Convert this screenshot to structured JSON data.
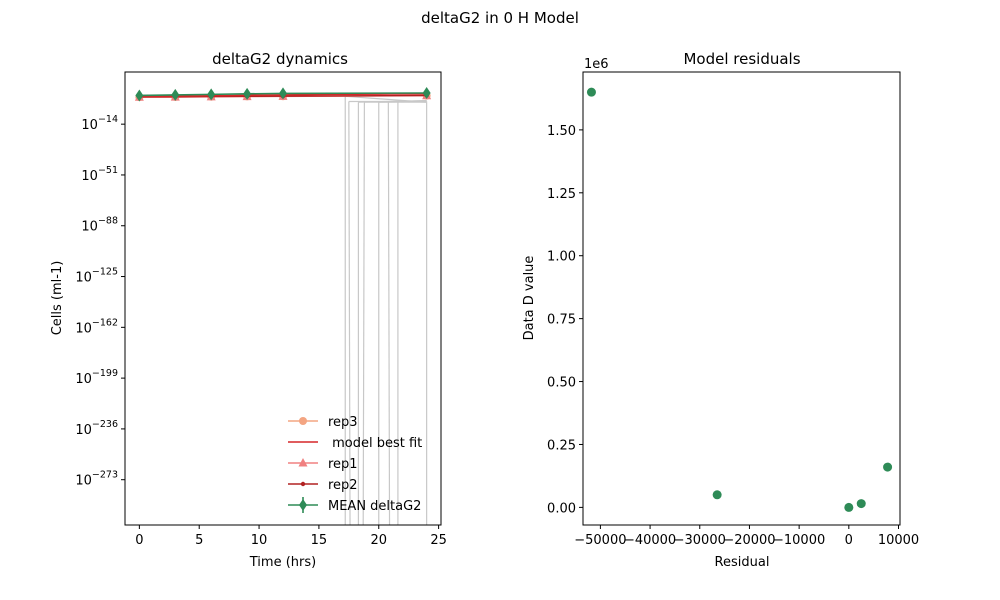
{
  "figure_title": "deltaG2 in 0 H Model",
  "colors": {
    "rep3": "#f4a582",
    "model": "#d62728",
    "rep1": "#f08080",
    "rep2": "#b22222",
    "mean": "#2e8b57",
    "ensemble": "#c8c8c8"
  },
  "chart_data": [
    {
      "type": "line",
      "title": "deltaG2 dynamics",
      "xlabel": "Time (hrs)",
      "ylabel": "Cells (ml-1)",
      "yscale": "log",
      "xlim": [
        -1.2,
        25.2
      ],
      "ylim_log10": [
        -306,
        24
      ],
      "x_ticks": [
        0,
        5,
        10,
        15,
        20,
        25
      ],
      "x_tick_labels": [
        "0",
        "5",
        "10",
        "15",
        "20",
        "25"
      ],
      "y_ticks_log10": [
        -14,
        -51,
        -88,
        -125,
        -162,
        -199,
        -236,
        -273
      ],
      "y_tick_labels": [
        "10",
        "10",
        "10",
        "10",
        "10",
        "10",
        "10",
        "10"
      ],
      "y_tick_exponents": [
        "−14",
        "−51",
        "−88",
        "−125",
        "−162",
        "−199",
        "−236",
        "−273"
      ],
      "legend": {
        "position": "lower right",
        "entries": [
          {
            "key": "rep3",
            "label": "rep3",
            "marker": "circle"
          },
          {
            "key": "model",
            "label": " model best fit",
            "marker": "none"
          },
          {
            "key": "rep1",
            "label": "rep1",
            "marker": "triangle"
          },
          {
            "key": "rep2",
            "label": "rep2",
            "marker": "dot"
          },
          {
            "key": "mean",
            "label": "MEAN deltaG2",
            "marker": "diamond"
          }
        ]
      },
      "series": [
        {
          "key": "rep3",
          "marker": "circle",
          "x": [
            0,
            3,
            6,
            9,
            12,
            24
          ],
          "y_log10": [
            5.7,
            5.8,
            6.0,
            6.2,
            6.3,
            6.8
          ]
        },
        {
          "key": "rep1",
          "marker": "triangle",
          "x": [
            0,
            3,
            6,
            9,
            12,
            24
          ],
          "y_log10": [
            5.6,
            5.7,
            5.9,
            6.1,
            6.2,
            6.7
          ]
        },
        {
          "key": "rep2",
          "marker": "dot",
          "x": [
            0,
            3,
            6,
            9,
            12,
            24
          ],
          "y_log10": [
            5.8,
            5.9,
            6.1,
            6.3,
            6.4,
            6.9
          ]
        },
        {
          "key": "model",
          "marker": "none",
          "x": [
            0,
            3,
            6,
            9,
            12,
            15,
            18,
            21,
            24
          ],
          "y_log10": [
            6.2,
            6.4,
            6.7,
            7.0,
            7.3,
            7.6,
            7.8,
            8.0,
            8.1
          ]
        },
        {
          "key": "mean",
          "marker": "diamond",
          "x": [
            0,
            3,
            6,
            9,
            12,
            24
          ],
          "y_log10": [
            6.9,
            7.3,
            7.7,
            8.1,
            8.4,
            8.7
          ],
          "err_log10": [
            3,
            3,
            3,
            3,
            3,
            3
          ]
        }
      ],
      "ensemble_drops": [
        {
          "x": 17.2,
          "drop_x": 17.2,
          "base_log10": 6.3
        },
        {
          "x": 17.5,
          "drop_x": 17.6,
          "base_log10": 2.5
        },
        {
          "x": 18.3,
          "drop_x": 18.3,
          "base_log10": 2.0
        },
        {
          "x": 18.8,
          "drop_x": 18.7,
          "base_log10": 2.0
        },
        {
          "x": 20.0,
          "drop_x": 20.0,
          "base_log10": 2.0
        },
        {
          "x": 20.8,
          "drop_x": 20.9,
          "base_log10": 2.2
        },
        {
          "x": 21.6,
          "drop_x": 21.6,
          "base_log10": 2.8
        },
        {
          "x": 24.0,
          "drop_x": 24.0,
          "base_log10": 2.0
        }
      ]
    },
    {
      "type": "scatter",
      "title": "Model residuals",
      "xlabel": "Residual",
      "ylabel": "Data D value",
      "xlim": [
        -53500,
        10300
      ],
      "ylim": [
        -0.07,
        1.73
      ],
      "offset_label": "1e6",
      "x_ticks": [
        -50000,
        -40000,
        -30000,
        -20000,
        -10000,
        0,
        10000
      ],
      "x_tick_labels": [
        "−50000",
        "−40000",
        "−30000",
        "−20000",
        "−10000",
        "0",
        "10000"
      ],
      "y_ticks": [
        0.0,
        0.25,
        0.5,
        0.75,
        1.0,
        1.25,
        1.5
      ],
      "y_tick_labels": [
        "0.00",
        "0.25",
        "0.50",
        "0.75",
        "1.00",
        "1.25",
        "1.50"
      ],
      "points": [
        {
          "x": -51800,
          "y": 1.65
        },
        {
          "x": -26500,
          "y": 0.05
        },
        {
          "x": 0,
          "y": 0.0
        },
        {
          "x": 2500,
          "y": 0.015
        },
        {
          "x": 7800,
          "y": 0.16
        }
      ]
    }
  ]
}
